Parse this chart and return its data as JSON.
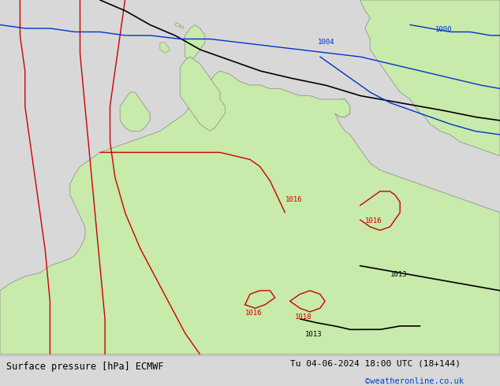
{
  "title_left": "Surface pressure [hPa] ECMWF",
  "title_right": "Tu 04-06-2024 18:00 UTC (18+144)",
  "credit": "©weatheronline.co.uk",
  "bg_color": "#d8d8d8",
  "land_color": "#c8eaaa",
  "sea_color": "#d8d8d8",
  "border_color": "#888888",
  "footer_bg": "#e8e8e8",
  "credit_color": "#0044cc",
  "fig_width": 6.34,
  "fig_height": 4.9,
  "dpi": 100
}
